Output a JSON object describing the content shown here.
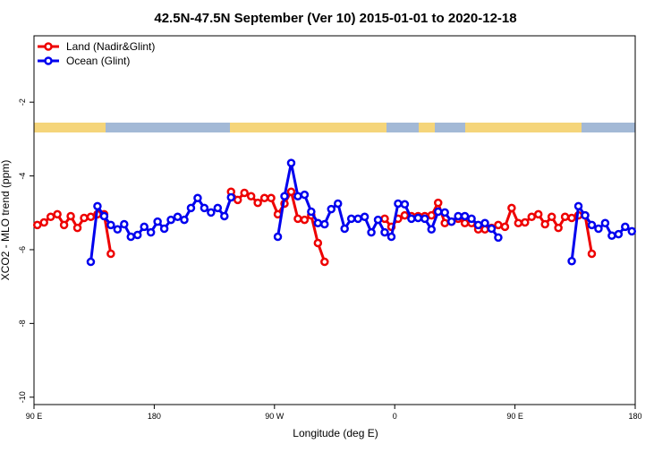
{
  "chart_data": {
    "type": "line",
    "title": "42.5N-47.5N September (Ver 10)   2015-01-01 to 2020-12-18",
    "x_label": "Longitude (deg E)",
    "y_label": "XCO2 - MLO trend (ppm)",
    "x": [
      92.5,
      97.5,
      102.5,
      107.5,
      112.5,
      117.5,
      122.5,
      127.5,
      132.5,
      137.5,
      142.5,
      147.5,
      152.5,
      157.5,
      162.5,
      167.5,
      172.5,
      177.5,
      182.5,
      187.5,
      192.5,
      197.5,
      202.5,
      207.5,
      212.5,
      217.5,
      222.5,
      227.5,
      232.5,
      237.5,
      242.5,
      247.5,
      252.5,
      257.5,
      262.5,
      267.5,
      272.5,
      277.5,
      282.5,
      287.5,
      292.5,
      297.5,
      302.5,
      307.5,
      312.5,
      317.5,
      322.5,
      327.5,
      332.5,
      337.5,
      342.5,
      347.5,
      352.5,
      357.5,
      362.5,
      367.5,
      372.5,
      377.5,
      382.5,
      387.5,
      392.5,
      397.5,
      402.5,
      407.5,
      412.5,
      417.5,
      422.5,
      427.5,
      432.5,
      437.5,
      442.5,
      447.5,
      452.5,
      457.5,
      462.5,
      467.5,
      472.5,
      477.5,
      482.5,
      487.5,
      492.5,
      497.5,
      502.5,
      507.5,
      512.5,
      517.5,
      522.5,
      527.5,
      532.5,
      537.5
    ],
    "series": [
      {
        "name": "Land (Nadir&Glint)",
        "color": "#ee0000",
        "values": [
          -5.33,
          -5.26,
          -5.11,
          -5.04,
          -5.33,
          -5.09,
          -5.41,
          -5.14,
          -5.11,
          -5.04,
          -5.04,
          -6.11,
          null,
          null,
          null,
          null,
          null,
          null,
          null,
          null,
          null,
          null,
          null,
          null,
          null,
          null,
          null,
          null,
          null,
          -4.43,
          -4.65,
          -4.46,
          -4.55,
          -4.73,
          -4.6,
          -4.6,
          -5.04,
          -4.75,
          -4.43,
          -5.16,
          -5.19,
          -5.07,
          -5.82,
          -6.33,
          null,
          null,
          null,
          null,
          null,
          null,
          null,
          null,
          -5.16,
          -5.38,
          -5.16,
          -5.07,
          -5.09,
          -5.09,
          -5.09,
          -5.07,
          -4.73,
          -5.28,
          -5.24,
          -5.16,
          -5.28,
          -5.28,
          -5.45,
          -5.45,
          -5.41,
          -5.33,
          -5.38,
          -4.87,
          -5.28,
          -5.26,
          -5.11,
          -5.04,
          -5.31,
          -5.11,
          -5.41,
          -5.11,
          -5.14,
          -5.07,
          -5.07,
          -6.11,
          null,
          null,
          null,
          null,
          null,
          null
        ]
      },
      {
        "name": "Ocean (Glint)",
        "color": "#0000ee",
        "values": [
          null,
          null,
          null,
          null,
          null,
          null,
          null,
          null,
          -6.33,
          -4.82,
          -5.09,
          -5.33,
          -5.45,
          -5.31,
          -5.65,
          -5.6,
          -5.38,
          -5.53,
          -5.24,
          -5.43,
          -5.19,
          -5.11,
          -5.19,
          -4.87,
          -4.6,
          -4.87,
          -4.99,
          -4.87,
          -5.09,
          -4.58,
          null,
          null,
          null,
          null,
          null,
          null,
          -5.65,
          -4.55,
          -3.65,
          -4.55,
          -4.51,
          -4.97,
          -5.28,
          -5.31,
          -4.9,
          -4.75,
          -5.43,
          -5.16,
          -5.16,
          -5.11,
          -5.53,
          -5.19,
          -5.53,
          -5.65,
          -4.75,
          -4.77,
          -5.16,
          -5.14,
          -5.16,
          -5.45,
          -4.97,
          -4.99,
          -5.24,
          -5.09,
          -5.09,
          -5.16,
          -5.33,
          -5.28,
          -5.43,
          -5.67,
          null,
          null,
          null,
          null,
          null,
          null,
          null,
          null,
          null,
          null,
          -6.31,
          -4.82,
          -5.07,
          -5.33,
          -5.43,
          -5.28,
          -5.62,
          -5.58,
          -5.38,
          -5.5
        ]
      }
    ],
    "xlim": [
      90,
      540
    ],
    "xticks": [
      {
        "value": 90,
        "label": "90 E"
      },
      180,
      {
        "value": 270,
        "label": "90 W"
      },
      {
        "value": 360,
        "label": "0"
      },
      {
        "value": 450,
        "label": "90 E"
      },
      {
        "value": 540,
        "label": "180"
      }
    ],
    "ylim": [
      -10.2,
      -0.2
    ],
    "yticks": [
      -10,
      -8,
      -6,
      -4,
      -2
    ],
    "legend": "top-left"
  }
}
